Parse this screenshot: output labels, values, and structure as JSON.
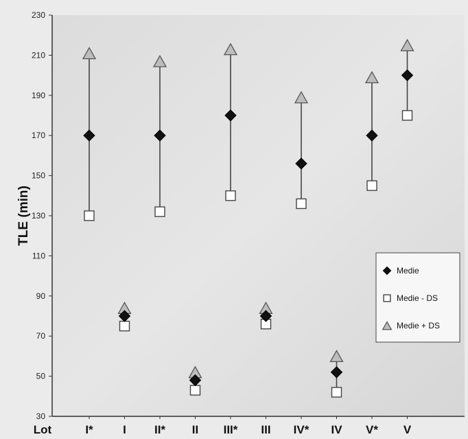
{
  "chart_data": {
    "type": "scatter",
    "ylabel": "TLE (min)",
    "x_axis_prefix": "Lot",
    "categories": [
      "I*",
      "I",
      "II*",
      "II",
      "III*",
      "III",
      "IV*",
      "IV",
      "V*",
      "V"
    ],
    "ylim": [
      30,
      230
    ],
    "yticks": [
      30,
      50,
      70,
      90,
      110,
      130,
      150,
      170,
      190,
      210,
      230
    ],
    "grid": false,
    "legend_position": "right",
    "error_bars_connect_series": [
      "Medie - DS",
      "Medie + DS"
    ],
    "series": [
      {
        "name": "Medie",
        "marker": "diamond",
        "color": "#111111",
        "values": [
          170,
          80,
          170,
          48,
          180,
          80,
          156,
          52,
          170,
          200
        ]
      },
      {
        "name": "Medie - DS",
        "marker": "square",
        "color": "#ffffff",
        "values": [
          130,
          75,
          132,
          43,
          140,
          76,
          136,
          42,
          145,
          180
        ]
      },
      {
        "name": "Medie + DS",
        "marker": "triangle",
        "color": "#bdbdbd",
        "values": [
          211,
          84,
          207,
          52,
          213,
          84,
          189,
          60,
          199,
          215
        ]
      }
    ]
  }
}
